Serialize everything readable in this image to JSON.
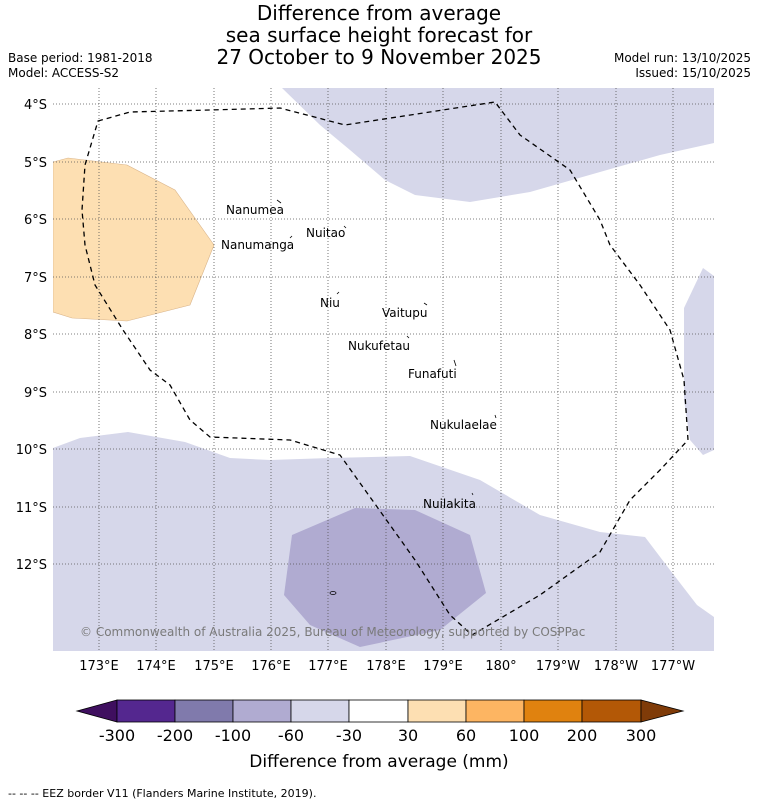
{
  "header": {
    "title_lines": [
      "Difference from average",
      "sea surface height forecast for",
      "27 October to 9 November 2025"
    ],
    "base_period": "Base period: 1981-2018",
    "model": "Model: ACCESS-S2",
    "model_run": "Model run: 13/10/2025",
    "issued": "Issued: 15/10/2025"
  },
  "map": {
    "lat_labels": [
      "4°S",
      "5°S",
      "6°S",
      "7°S",
      "8°S",
      "9°S",
      "10°S",
      "11°S",
      "12°S"
    ],
    "lon_labels": [
      "173°E",
      "174°E",
      "175°E",
      "176°E",
      "177°E",
      "178°E",
      "179°E",
      "180°",
      "179°W",
      "178°W",
      "177°W"
    ],
    "places": [
      "Nanumea",
      "Nuitao",
      "Nanumanga",
      "Niu",
      "Vaitupu",
      "Nukufetau",
      "Funafuti",
      "Nukulaelae",
      "Nuilakita"
    ],
    "copyright": "© Commonwealth of Australia 2025, Bureau of Meteorology, supported by COSPPac",
    "colors": {
      "neg_30_60": "#d6d7ea",
      "neg_60_100": "#b0abd1",
      "pos_30_60": "#fddfb2",
      "eez_border": "#000000"
    }
  },
  "colorbar": {
    "tick_labels": [
      "-300",
      "-200",
      "-100",
      "-60",
      "-30",
      "30",
      "60",
      "100",
      "200",
      "300"
    ],
    "title": "Difference from average (mm)",
    "colors": [
      "#3f0f5f",
      "#54278f",
      "#807aac",
      "#b0abd1",
      "#d6d7ea",
      "#ffffff",
      "#fddfb2",
      "#fdb562",
      "#e0820f",
      "#b35806",
      "#7f3b08"
    ]
  },
  "footer": {
    "legend": "--  --  -- EEZ border V11 (Flanders Marine Institute, 2019)."
  }
}
